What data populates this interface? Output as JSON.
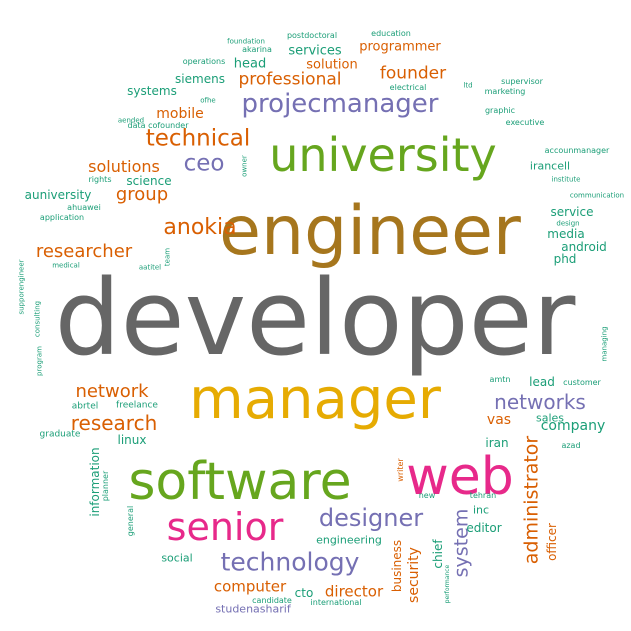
{
  "palette": {
    "gray": "#666666",
    "ochre": "#a6761d",
    "green": "#66a61e",
    "gold": "#e6ab02",
    "purple": "#7570b3",
    "orange": "#d95f02",
    "teal": "#1b9e77",
    "pink": "#e7298a"
  },
  "words": [
    {
      "text": "developer",
      "color": "gray"
    },
    {
      "text": "engineer",
      "color": "ochre"
    },
    {
      "text": "university",
      "color": "green"
    },
    {
      "text": "manager",
      "color": "gold"
    },
    {
      "text": "software",
      "color": "green"
    },
    {
      "text": "web",
      "color": "pink"
    },
    {
      "text": "senior",
      "color": "pink"
    },
    {
      "text": "projecmanager",
      "color": "purple"
    },
    {
      "text": "technology",
      "color": "purple"
    },
    {
      "text": "designer",
      "color": "purple"
    },
    {
      "text": "technical",
      "color": "orange"
    },
    {
      "text": "ceo",
      "color": "purple"
    },
    {
      "text": "anokia",
      "color": "orange"
    },
    {
      "text": "networks",
      "color": "purple"
    },
    {
      "text": "research",
      "color": "orange"
    },
    {
      "text": "network",
      "color": "orange"
    },
    {
      "text": "researcher",
      "color": "orange"
    },
    {
      "text": "administrator",
      "color": "orange"
    },
    {
      "text": "system",
      "color": "purple"
    },
    {
      "text": "group",
      "color": "orange"
    },
    {
      "text": "professional",
      "color": "orange"
    },
    {
      "text": "founder",
      "color": "orange"
    },
    {
      "text": "solutions",
      "color": "orange"
    },
    {
      "text": "computer",
      "color": "orange"
    },
    {
      "text": "director",
      "color": "orange"
    },
    {
      "text": "security",
      "color": "orange"
    },
    {
      "text": "mobile",
      "color": "orange"
    },
    {
      "text": "company",
      "color": "teal"
    },
    {
      "text": "programmer",
      "color": "orange"
    },
    {
      "text": "services",
      "color": "teal"
    },
    {
      "text": "solution",
      "color": "orange"
    },
    {
      "text": "head",
      "color": "teal"
    },
    {
      "text": "siemens",
      "color": "teal"
    },
    {
      "text": "systems",
      "color": "teal"
    },
    {
      "text": "science",
      "color": "teal"
    },
    {
      "text": "auniversity",
      "color": "teal"
    },
    {
      "text": "linux",
      "color": "teal"
    },
    {
      "text": "vas",
      "color": "orange"
    },
    {
      "text": "iran",
      "color": "teal"
    },
    {
      "text": "lead",
      "color": "teal"
    },
    {
      "text": "sales",
      "color": "teal"
    },
    {
      "text": "service",
      "color": "teal"
    },
    {
      "text": "media",
      "color": "teal"
    },
    {
      "text": "android",
      "color": "teal"
    },
    {
      "text": "phd",
      "color": "teal"
    },
    {
      "text": "irancell",
      "color": "teal"
    },
    {
      "text": "information",
      "color": "teal"
    },
    {
      "text": "social",
      "color": "teal"
    },
    {
      "text": "engineering",
      "color": "teal"
    },
    {
      "text": "studenasharif",
      "color": "purple"
    },
    {
      "text": "cto",
      "color": "teal"
    },
    {
      "text": "business",
      "color": "orange"
    },
    {
      "text": "chief",
      "color": "teal"
    },
    {
      "text": "officer",
      "color": "orange"
    },
    {
      "text": "editor",
      "color": "teal"
    },
    {
      "text": "inc",
      "color": "teal"
    },
    {
      "text": "abrtel",
      "color": "teal"
    },
    {
      "text": "freelance",
      "color": "teal"
    },
    {
      "text": "graduate",
      "color": "teal"
    },
    {
      "text": "planner",
      "color": "teal"
    },
    {
      "text": "general",
      "color": "teal"
    },
    {
      "text": "writer",
      "color": "orange"
    },
    {
      "text": "new",
      "color": "teal"
    },
    {
      "text": "tehran",
      "color": "teal"
    },
    {
      "text": "azad",
      "color": "teal"
    },
    {
      "text": "amtn",
      "color": "teal"
    },
    {
      "text": "customer",
      "color": "teal"
    },
    {
      "text": "international",
      "color": "teal"
    },
    {
      "text": "candidate",
      "color": "teal"
    },
    {
      "text": "performance",
      "color": "teal"
    },
    {
      "text": "managing",
      "color": "teal"
    },
    {
      "text": "communication",
      "color": "teal"
    },
    {
      "text": "institute",
      "color": "teal"
    },
    {
      "text": "design",
      "color": "teal"
    },
    {
      "text": "accounmanager",
      "color": "teal"
    },
    {
      "text": "executive",
      "color": "teal"
    },
    {
      "text": "graphic",
      "color": "teal"
    },
    {
      "text": "marketing",
      "color": "teal"
    },
    {
      "text": "supervisor",
      "color": "teal"
    },
    {
      "text": "ltd",
      "color": "teal"
    },
    {
      "text": "electrical",
      "color": "teal"
    },
    {
      "text": "education",
      "color": "teal"
    },
    {
      "text": "postdoctoral",
      "color": "teal"
    },
    {
      "text": "foundation",
      "color": "teal"
    },
    {
      "text": "akarina",
      "color": "teal"
    },
    {
      "text": "operations",
      "color": "teal"
    },
    {
      "text": "ofhe",
      "color": "teal"
    },
    {
      "text": "aended",
      "color": "teal"
    },
    {
      "text": "data cofounder",
      "color": "teal"
    },
    {
      "text": "rights",
      "color": "teal"
    },
    {
      "text": "ahuawei",
      "color": "teal"
    },
    {
      "text": "application",
      "color": "teal"
    },
    {
      "text": "medical",
      "color": "teal"
    },
    {
      "text": "aatitel",
      "color": "teal"
    },
    {
      "text": "team",
      "color": "teal"
    },
    {
      "text": "owner",
      "color": "teal"
    },
    {
      "text": "supporengineer",
      "color": "teal"
    },
    {
      "text": "consulting",
      "color": "teal"
    },
    {
      "text": "program",
      "color": "teal"
    }
  ]
}
